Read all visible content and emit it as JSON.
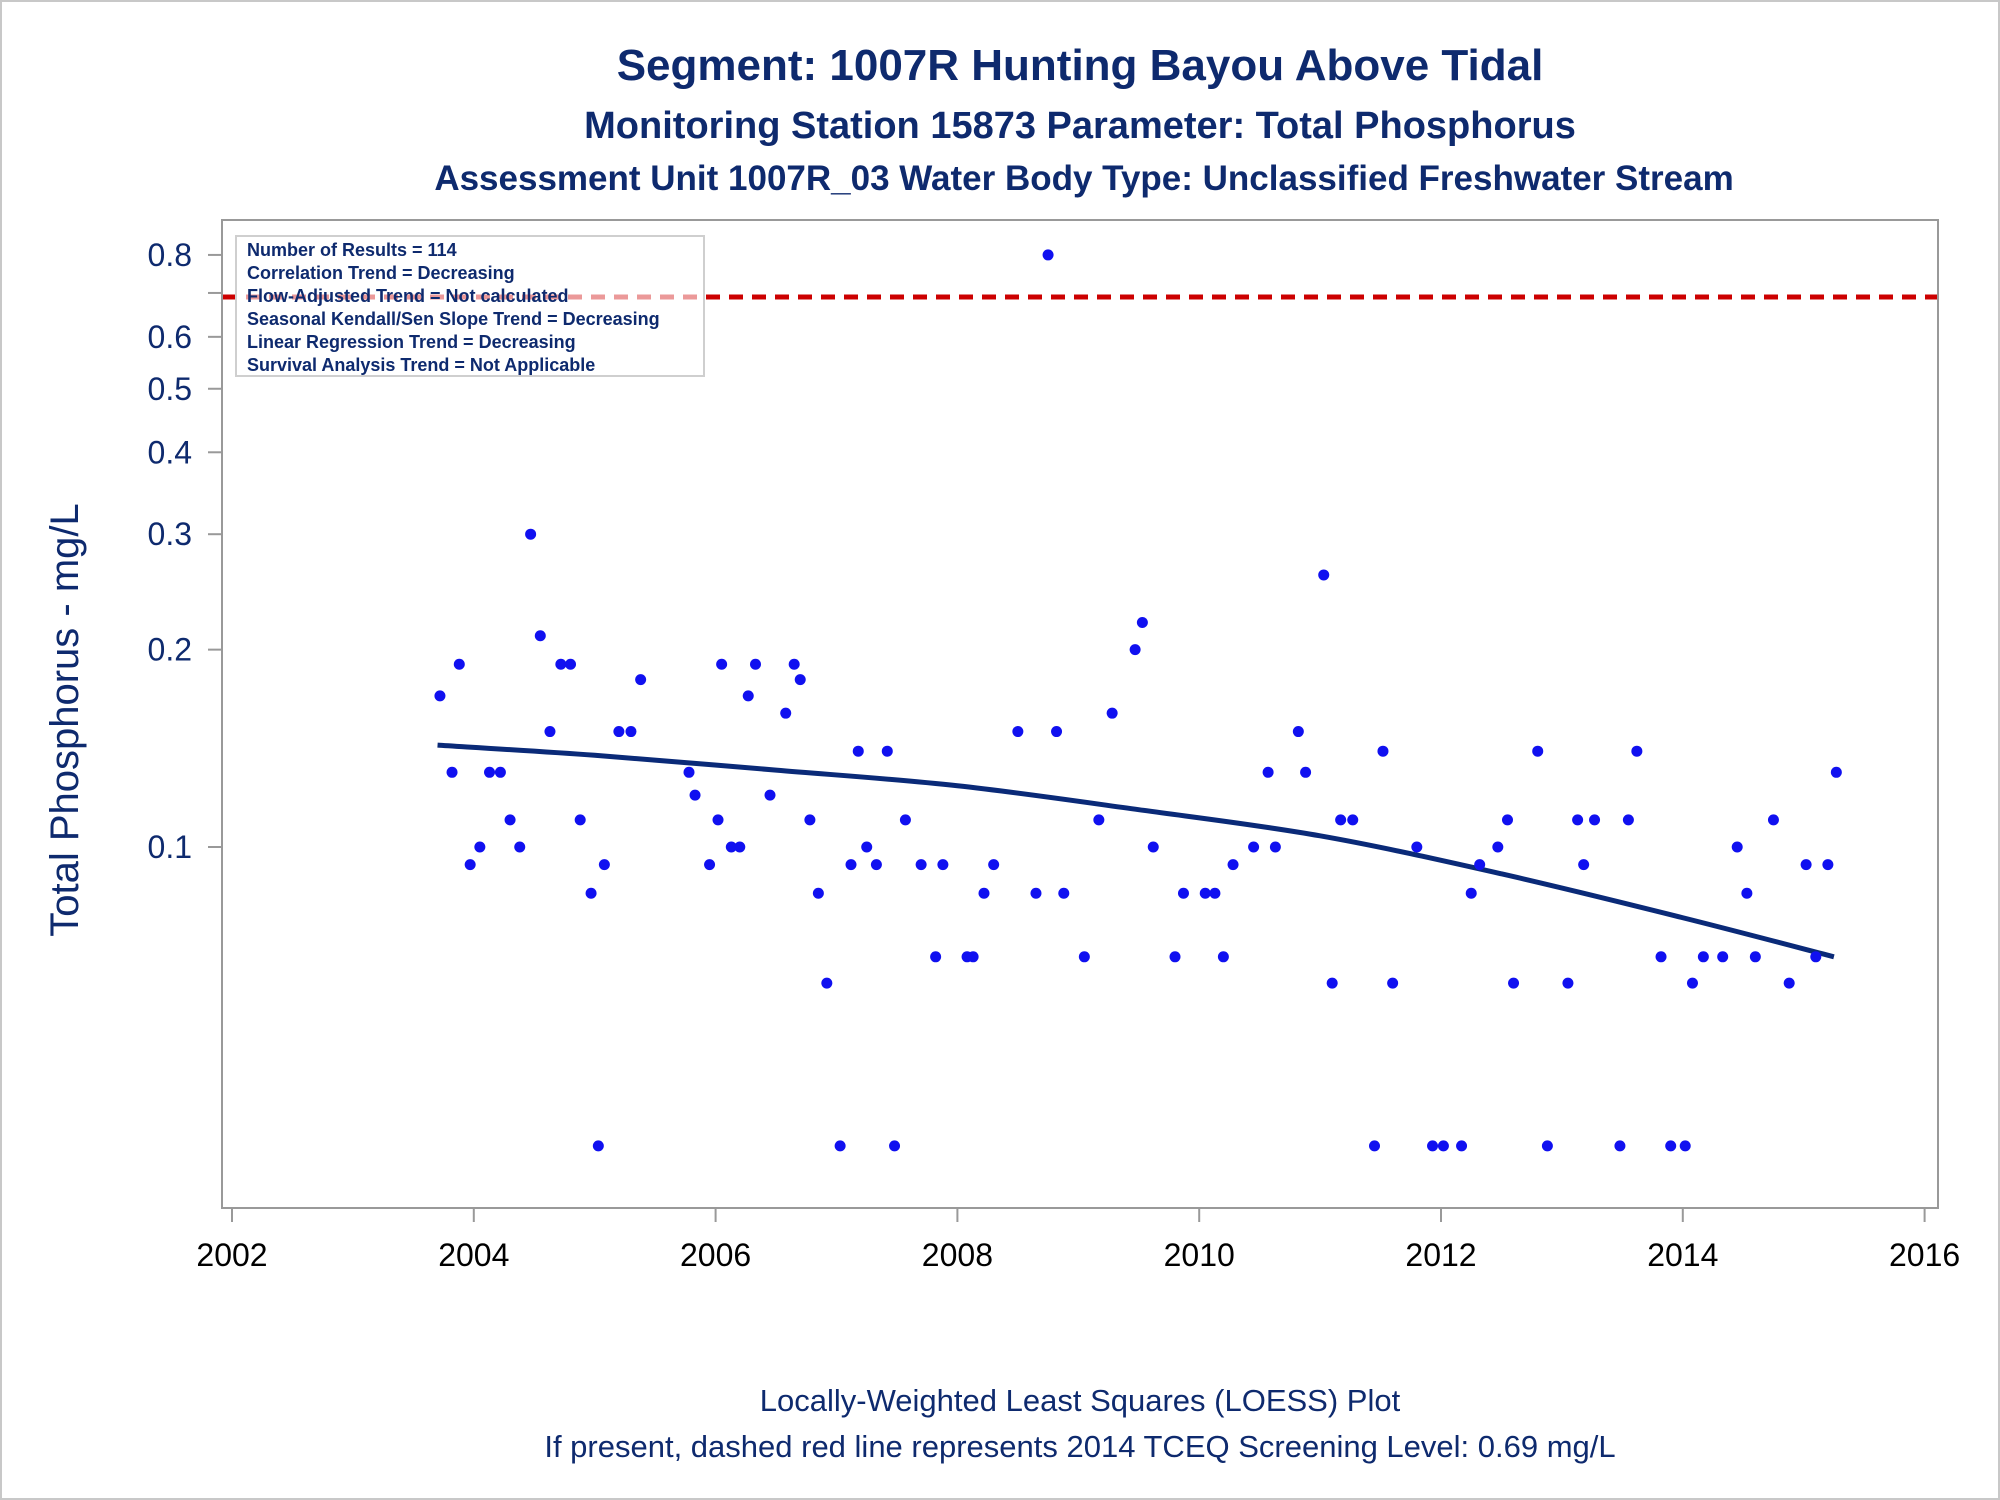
{
  "titles": {
    "line1": "Segment: 1007R  Hunting Bayou Above Tidal",
    "line2": "Monitoring Station 15873 Parameter: Total Phosphorus",
    "line3": "Assessment Unit 1007R_03   Water Body Type: Unclassified Freshwater Stream"
  },
  "inset": {
    "lines": [
      "Number of Results = 114",
      "Correlation Trend = Decreasing",
      "Flow-Adjusted Trend = Not calculated",
      "Seasonal Kendall/Sen Slope Trend = Decreasing",
      "Linear Regression Trend = Decreasing",
      "Survival Analysis Trend = Not Applicable"
    ]
  },
  "footnotes": {
    "line1": "Locally-Weighted Least Squares (LOESS) Plot",
    "line2": "If present, dashed red line represents 2014 TCEQ Screening Level: 0.69 mg/L"
  },
  "colors": {
    "text": "#0e2a6e",
    "points": "#1010f0",
    "loess": "#0a2a78",
    "screening": "#cc0000",
    "axis": "#999999"
  },
  "chart_data": {
    "type": "scatter",
    "ylabel": "Total Phosphorus - mg/L",
    "xlabel": "",
    "yscale": "log",
    "xlim": [
      2002,
      2016
    ],
    "ylim": [
      0.03,
      0.85
    ],
    "xticks": [
      "2002",
      "2004",
      "2006",
      "2008",
      "2010",
      "2012",
      "2014",
      "2016"
    ],
    "yticks": [
      "0.1",
      "0.2",
      "0.3",
      "0.4",
      "0.5",
      "0.6",
      "0.8"
    ],
    "screening_level": 0.69,
    "loess": {
      "x": [
        2003.7,
        2005.0,
        2006.5,
        2008.0,
        2009.5,
        2011.0,
        2012.5,
        2014.0,
        2015.25
      ],
      "y": [
        0.143,
        0.138,
        0.131,
        0.124,
        0.114,
        0.104,
        0.091,
        0.078,
        0.068
      ]
    },
    "points": [
      [
        2003.72,
        0.17
      ],
      [
        2003.82,
        0.13
      ],
      [
        2003.88,
        0.19
      ],
      [
        2003.97,
        0.094
      ],
      [
        2004.05,
        0.1
      ],
      [
        2004.13,
        0.13
      ],
      [
        2004.22,
        0.13
      ],
      [
        2004.3,
        0.11
      ],
      [
        2004.38,
        0.1
      ],
      [
        2004.47,
        0.3
      ],
      [
        2004.55,
        0.21
      ],
      [
        2004.63,
        0.15
      ],
      [
        2004.72,
        0.19
      ],
      [
        2004.8,
        0.19
      ],
      [
        2004.88,
        0.11
      ],
      [
        2004.97,
        0.085
      ],
      [
        2005.03,
        0.035
      ],
      [
        2005.08,
        0.094
      ],
      [
        2005.2,
        0.15
      ],
      [
        2005.3,
        0.15
      ],
      [
        2005.38,
        0.18
      ],
      [
        2005.78,
        0.13
      ],
      [
        2005.83,
        0.12
      ],
      [
        2005.95,
        0.094
      ],
      [
        2006.02,
        0.11
      ],
      [
        2006.05,
        0.19
      ],
      [
        2006.13,
        0.1
      ],
      [
        2006.2,
        0.1
      ],
      [
        2006.27,
        0.17
      ],
      [
        2006.33,
        0.19
      ],
      [
        2006.45,
        0.12
      ],
      [
        2006.58,
        0.16
      ],
      [
        2006.65,
        0.19
      ],
      [
        2006.7,
        0.18
      ],
      [
        2006.78,
        0.11
      ],
      [
        2006.85,
        0.085
      ],
      [
        2006.92,
        0.062
      ],
      [
        2007.03,
        0.035
      ],
      [
        2007.12,
        0.094
      ],
      [
        2007.18,
        0.14
      ],
      [
        2007.25,
        0.1
      ],
      [
        2007.33,
        0.094
      ],
      [
        2007.42,
        0.14
      ],
      [
        2007.48,
        0.035
      ],
      [
        2007.57,
        0.11
      ],
      [
        2007.7,
        0.094
      ],
      [
        2007.82,
        0.068
      ],
      [
        2007.88,
        0.094
      ],
      [
        2008.08,
        0.068
      ],
      [
        2008.13,
        0.068
      ],
      [
        2008.22,
        0.085
      ],
      [
        2008.3,
        0.094
      ],
      [
        2008.5,
        0.15
      ],
      [
        2008.65,
        0.085
      ],
      [
        2008.75,
        0.8
      ],
      [
        2008.82,
        0.15
      ],
      [
        2008.88,
        0.085
      ],
      [
        2009.05,
        0.068
      ],
      [
        2009.17,
        0.11
      ],
      [
        2009.28,
        0.16
      ],
      [
        2009.47,
        0.2
      ],
      [
        2009.53,
        0.22
      ],
      [
        2009.62,
        0.1
      ],
      [
        2009.8,
        0.068
      ],
      [
        2009.87,
        0.085
      ],
      [
        2010.05,
        0.085
      ],
      [
        2010.13,
        0.085
      ],
      [
        2010.2,
        0.068
      ],
      [
        2010.28,
        0.094
      ],
      [
        2010.45,
        0.1
      ],
      [
        2010.57,
        0.13
      ],
      [
        2010.63,
        0.1
      ],
      [
        2010.82,
        0.15
      ],
      [
        2010.88,
        0.13
      ],
      [
        2011.03,
        0.26
      ],
      [
        2011.1,
        0.062
      ],
      [
        2011.17,
        0.11
      ],
      [
        2011.27,
        0.11
      ],
      [
        2011.45,
        0.035
      ],
      [
        2011.52,
        0.14
      ],
      [
        2011.6,
        0.062
      ],
      [
        2011.8,
        0.1
      ],
      [
        2011.93,
        0.035
      ],
      [
        2012.02,
        0.035
      ],
      [
        2012.17,
        0.035
      ],
      [
        2012.25,
        0.085
      ],
      [
        2012.32,
        0.094
      ],
      [
        2012.47,
        0.1
      ],
      [
        2012.55,
        0.11
      ],
      [
        2012.6,
        0.062
      ],
      [
        2012.8,
        0.14
      ],
      [
        2012.88,
        0.035
      ],
      [
        2013.05,
        0.062
      ],
      [
        2013.13,
        0.11
      ],
      [
        2013.18,
        0.094
      ],
      [
        2013.27,
        0.11
      ],
      [
        2013.48,
        0.035
      ],
      [
        2013.55,
        0.11
      ],
      [
        2013.62,
        0.14
      ],
      [
        2013.82,
        0.068
      ],
      [
        2013.9,
        0.035
      ],
      [
        2014.02,
        0.035
      ],
      [
        2014.08,
        0.062
      ],
      [
        2014.17,
        0.068
      ],
      [
        2014.33,
        0.068
      ],
      [
        2014.45,
        0.1
      ],
      [
        2014.53,
        0.085
      ],
      [
        2014.6,
        0.068
      ],
      [
        2014.75,
        0.11
      ],
      [
        2014.88,
        0.062
      ],
      [
        2015.02,
        0.094
      ],
      [
        2015.1,
        0.068
      ],
      [
        2015.2,
        0.094
      ],
      [
        2015.27,
        0.13
      ]
    ]
  }
}
